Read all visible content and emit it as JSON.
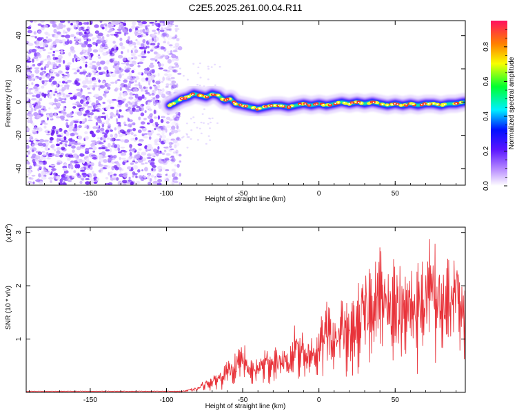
{
  "title": "C2E5.2025.261.00.04.R11",
  "chart_data": [
    {
      "type": "heatmap",
      "name": "spectrogram",
      "xlabel": "Height of straight line (km)",
      "ylabel": "Frequency (Hz)",
      "xlim": [
        -192,
        96
      ],
      "ylim": [
        -50,
        49
      ],
      "x_ticks": [
        -150,
        -100,
        -50,
        0,
        50
      ],
      "y_ticks": [
        -40,
        -20,
        0,
        20,
        40
      ],
      "noise_region_x": [
        -192,
        -91
      ],
      "signal_trace": [
        {
          "x": -98,
          "y": -2
        },
        {
          "x": -94,
          "y": 0
        },
        {
          "x": -90,
          "y": 2
        },
        {
          "x": -86,
          "y": 3
        },
        {
          "x": -82,
          "y": 5
        },
        {
          "x": -78,
          "y": 4
        },
        {
          "x": -74,
          "y": 3
        },
        {
          "x": -70,
          "y": 5
        },
        {
          "x": -66,
          "y": 4
        },
        {
          "x": -62,
          "y": 1
        },
        {
          "x": -58,
          "y": 2
        },
        {
          "x": -55,
          "y": -1
        },
        {
          "x": -50,
          "y": -2
        },
        {
          "x": -45,
          "y": -3
        },
        {
          "x": -40,
          "y": -4
        },
        {
          "x": -35,
          "y": -3
        },
        {
          "x": -30,
          "y": -2
        },
        {
          "x": -25,
          "y": -2
        },
        {
          "x": -20,
          "y": -3
        },
        {
          "x": -15,
          "y": -2
        },
        {
          "x": -10,
          "y": -1
        },
        {
          "x": -5,
          "y": -2
        },
        {
          "x": 0,
          "y": -1
        },
        {
          "x": 5,
          "y": -2
        },
        {
          "x": 10,
          "y": -1
        },
        {
          "x": 15,
          "y": 0
        },
        {
          "x": 20,
          "y": -1
        },
        {
          "x": 25,
          "y": 0
        },
        {
          "x": 30,
          "y": -1
        },
        {
          "x": 35,
          "y": 0
        },
        {
          "x": 40,
          "y": -1
        },
        {
          "x": 45,
          "y": -2
        },
        {
          "x": 50,
          "y": -1
        },
        {
          "x": 55,
          "y": -2
        },
        {
          "x": 60,
          "y": -1
        },
        {
          "x": 65,
          "y": -2
        },
        {
          "x": 70,
          "y": -1
        },
        {
          "x": 75,
          "y": -1
        },
        {
          "x": 80,
          "y": -2
        },
        {
          "x": 85,
          "y": -1
        },
        {
          "x": 90,
          "y": -1
        },
        {
          "x": 95,
          "y": 0
        }
      ],
      "colorbar": {
        "label": "Normalized spectral amplitude",
        "range": [
          0.0,
          0.95
        ],
        "ticks": [
          "0.0",
          "0.2",
          "0.4",
          "0.6",
          "0.8"
        ],
        "ticks_values": [
          0.0,
          0.2,
          0.4,
          0.6,
          0.8
        ]
      }
    },
    {
      "type": "line",
      "name": "snr",
      "xlabel": "Height of straight line (km)",
      "ylabel": "SNR (10 * v/v)",
      "scale_label_base": "(x10",
      "scale_label_exp": "4",
      "scale_label_end": ")",
      "xlim": [
        -192,
        96
      ],
      "ylim": [
        0,
        3.1
      ],
      "x_ticks": [
        -150,
        -100,
        -50,
        0,
        50
      ],
      "y_ticks": [
        1,
        2,
        3
      ],
      "color": "#e8333a",
      "envelope": [
        {
          "x": -192,
          "y": 0.02
        },
        {
          "x": -100,
          "y": 0.02
        },
        {
          "x": -90,
          "y": 0.03
        },
        {
          "x": -80,
          "y": 0.1
        },
        {
          "x": -75,
          "y": 0.25
        },
        {
          "x": -70,
          "y": 0.3
        },
        {
          "x": -65,
          "y": 0.45
        },
        {
          "x": -60,
          "y": 0.6
        },
        {
          "x": -55,
          "y": 0.75
        },
        {
          "x": -50,
          "y": 1.0
        },
        {
          "x": -45,
          "y": 0.6
        },
        {
          "x": -40,
          "y": 0.7
        },
        {
          "x": -35,
          "y": 0.9
        },
        {
          "x": -30,
          "y": 0.85
        },
        {
          "x": -25,
          "y": 1.0
        },
        {
          "x": -20,
          "y": 0.75
        },
        {
          "x": -15,
          "y": 1.5
        },
        {
          "x": -10,
          "y": 1.2
        },
        {
          "x": -5,
          "y": 1.1
        },
        {
          "x": 0,
          "y": 1.3
        },
        {
          "x": 5,
          "y": 1.85
        },
        {
          "x": 10,
          "y": 1.5
        },
        {
          "x": 15,
          "y": 1.9
        },
        {
          "x": 20,
          "y": 1.6
        },
        {
          "x": 25,
          "y": 2.0
        },
        {
          "x": 30,
          "y": 2.4
        },
        {
          "x": 35,
          "y": 2.6
        },
        {
          "x": 40,
          "y": 3.05
        },
        {
          "x": 45,
          "y": 2.4
        },
        {
          "x": 50,
          "y": 2.8
        },
        {
          "x": 55,
          "y": 2.2
        },
        {
          "x": 60,
          "y": 2.6
        },
        {
          "x": 65,
          "y": 2.5
        },
        {
          "x": 70,
          "y": 2.8
        },
        {
          "x": 75,
          "y": 3.05
        },
        {
          "x": 80,
          "y": 2.5
        },
        {
          "x": 85,
          "y": 2.6
        },
        {
          "x": 90,
          "y": 2.95
        },
        {
          "x": 96,
          "y": 2.3
        }
      ]
    }
  ]
}
